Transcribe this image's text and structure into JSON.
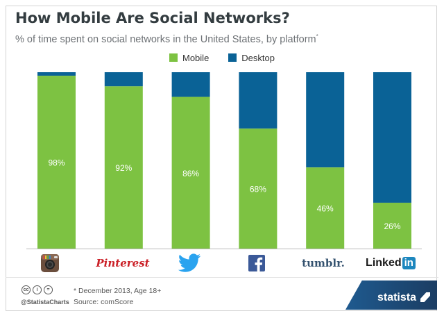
{
  "title": "How Mobile Are Social Networks?",
  "subtitle": "% of time spent on social networks in the United States, by platform",
  "subtitle_mark": "*",
  "legend": {
    "mobile_label": "Mobile",
    "desktop_label": "Desktop"
  },
  "colors": {
    "mobile": "#7dc242",
    "desktop": "#0a6296",
    "label_text": "#ffffff"
  },
  "chart_data": {
    "type": "bar",
    "stacked": true,
    "categories": [
      "Instagram",
      "Pinterest",
      "Twitter",
      "Facebook",
      "Tumblr",
      "LinkedIn"
    ],
    "series": [
      {
        "name": "Mobile",
        "values": [
          98,
          92,
          86,
          68,
          46,
          26
        ]
      },
      {
        "name": "Desktop",
        "values": [
          2,
          8,
          14,
          32,
          54,
          74
        ]
      }
    ],
    "data_labels": [
      "98%",
      "92%",
      "86%",
      "68%",
      "46%",
      "26%"
    ],
    "ylim": [
      0,
      100
    ],
    "grid": false,
    "legend_position": "top-center"
  },
  "platform_logos": {
    "pinterest": "Pinterest",
    "tumblr": "tumblr.",
    "linkedin_text": "Linked",
    "linkedin_badge": "in",
    "icons": [
      "instagram-icon",
      "pinterest-logo",
      "twitter-bird-icon",
      "facebook-icon",
      "tumblr-logo",
      "linkedin-logo"
    ]
  },
  "footer": {
    "handle": "@StatistaCharts",
    "note_line1": "* December 2013, Age 18+",
    "note_line2": "Source: comScore",
    "brand": "statista",
    "cc_icons": [
      "cc",
      "by",
      "nd"
    ]
  }
}
